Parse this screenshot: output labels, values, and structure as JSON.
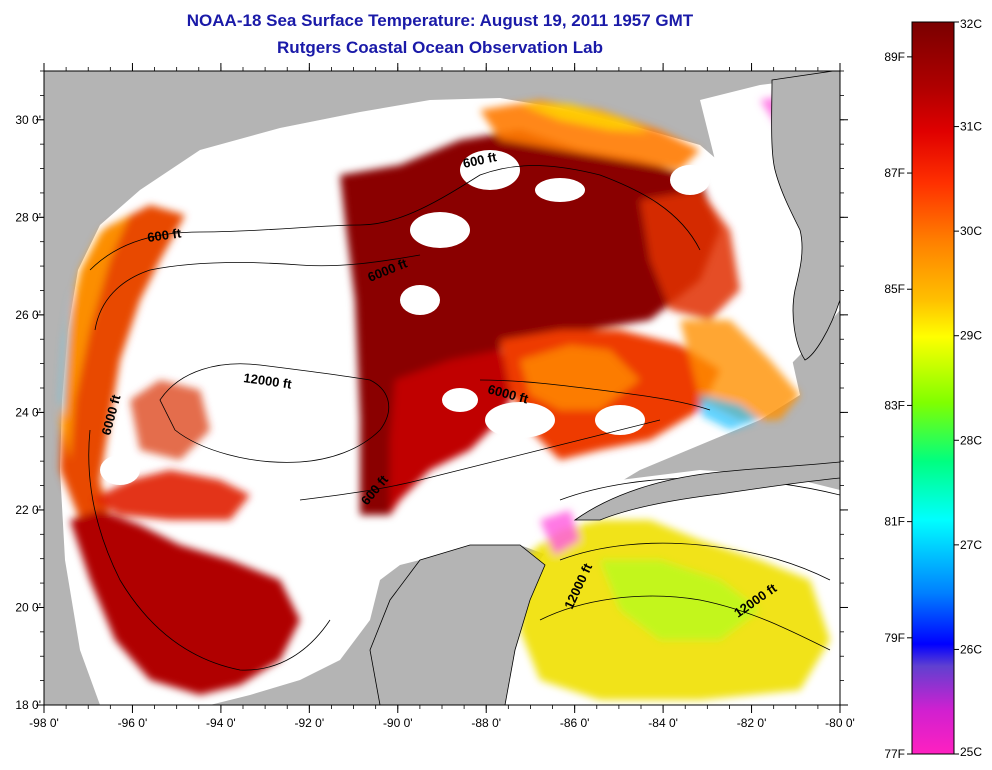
{
  "title_line1": "NOAA-18 Sea Surface Temperature:  August 19, 2011 1957 GMT",
  "title_line2": "Rutgers Coastal Ocean Observation Lab",
  "map": {
    "lon_labels": [
      "-98 0'",
      "-96 0'",
      "-94 0'",
      "-92 0'",
      "-90 0'",
      "-88 0'",
      "-86 0'",
      "-84 0'",
      "-82 0'",
      "-80 0'"
    ],
    "lat_labels": [
      "18 0'",
      "20 0'",
      "22 0'",
      "24 0'",
      "26 0'",
      "28 0'",
      "30 0'"
    ],
    "lon_range": [
      -98,
      -80
    ],
    "lat_range": [
      18,
      31
    ],
    "land_color": "#b4b4b4",
    "cloud_color": "#ffffff"
  },
  "contour_labels": [
    {
      "text": "600 ft"
    },
    {
      "text": "600 ft"
    },
    {
      "text": "6000 ft"
    },
    {
      "text": "12000 ft"
    },
    {
      "text": "6000 ft"
    },
    {
      "text": "6000 ft"
    },
    {
      "text": "600 ft"
    },
    {
      "text": "12000 ft"
    },
    {
      "text": "12000 ft"
    }
  ],
  "colorbar": {
    "celsius_labels": [
      "32C",
      "31C",
      "30C",
      "29C",
      "28C",
      "27C",
      "26C",
      "25C"
    ],
    "fahrenheit_labels": [
      "89F",
      "87F",
      "85F",
      "83F",
      "81F",
      "79F",
      "77F"
    ],
    "range_c": [
      25,
      32
    ]
  }
}
